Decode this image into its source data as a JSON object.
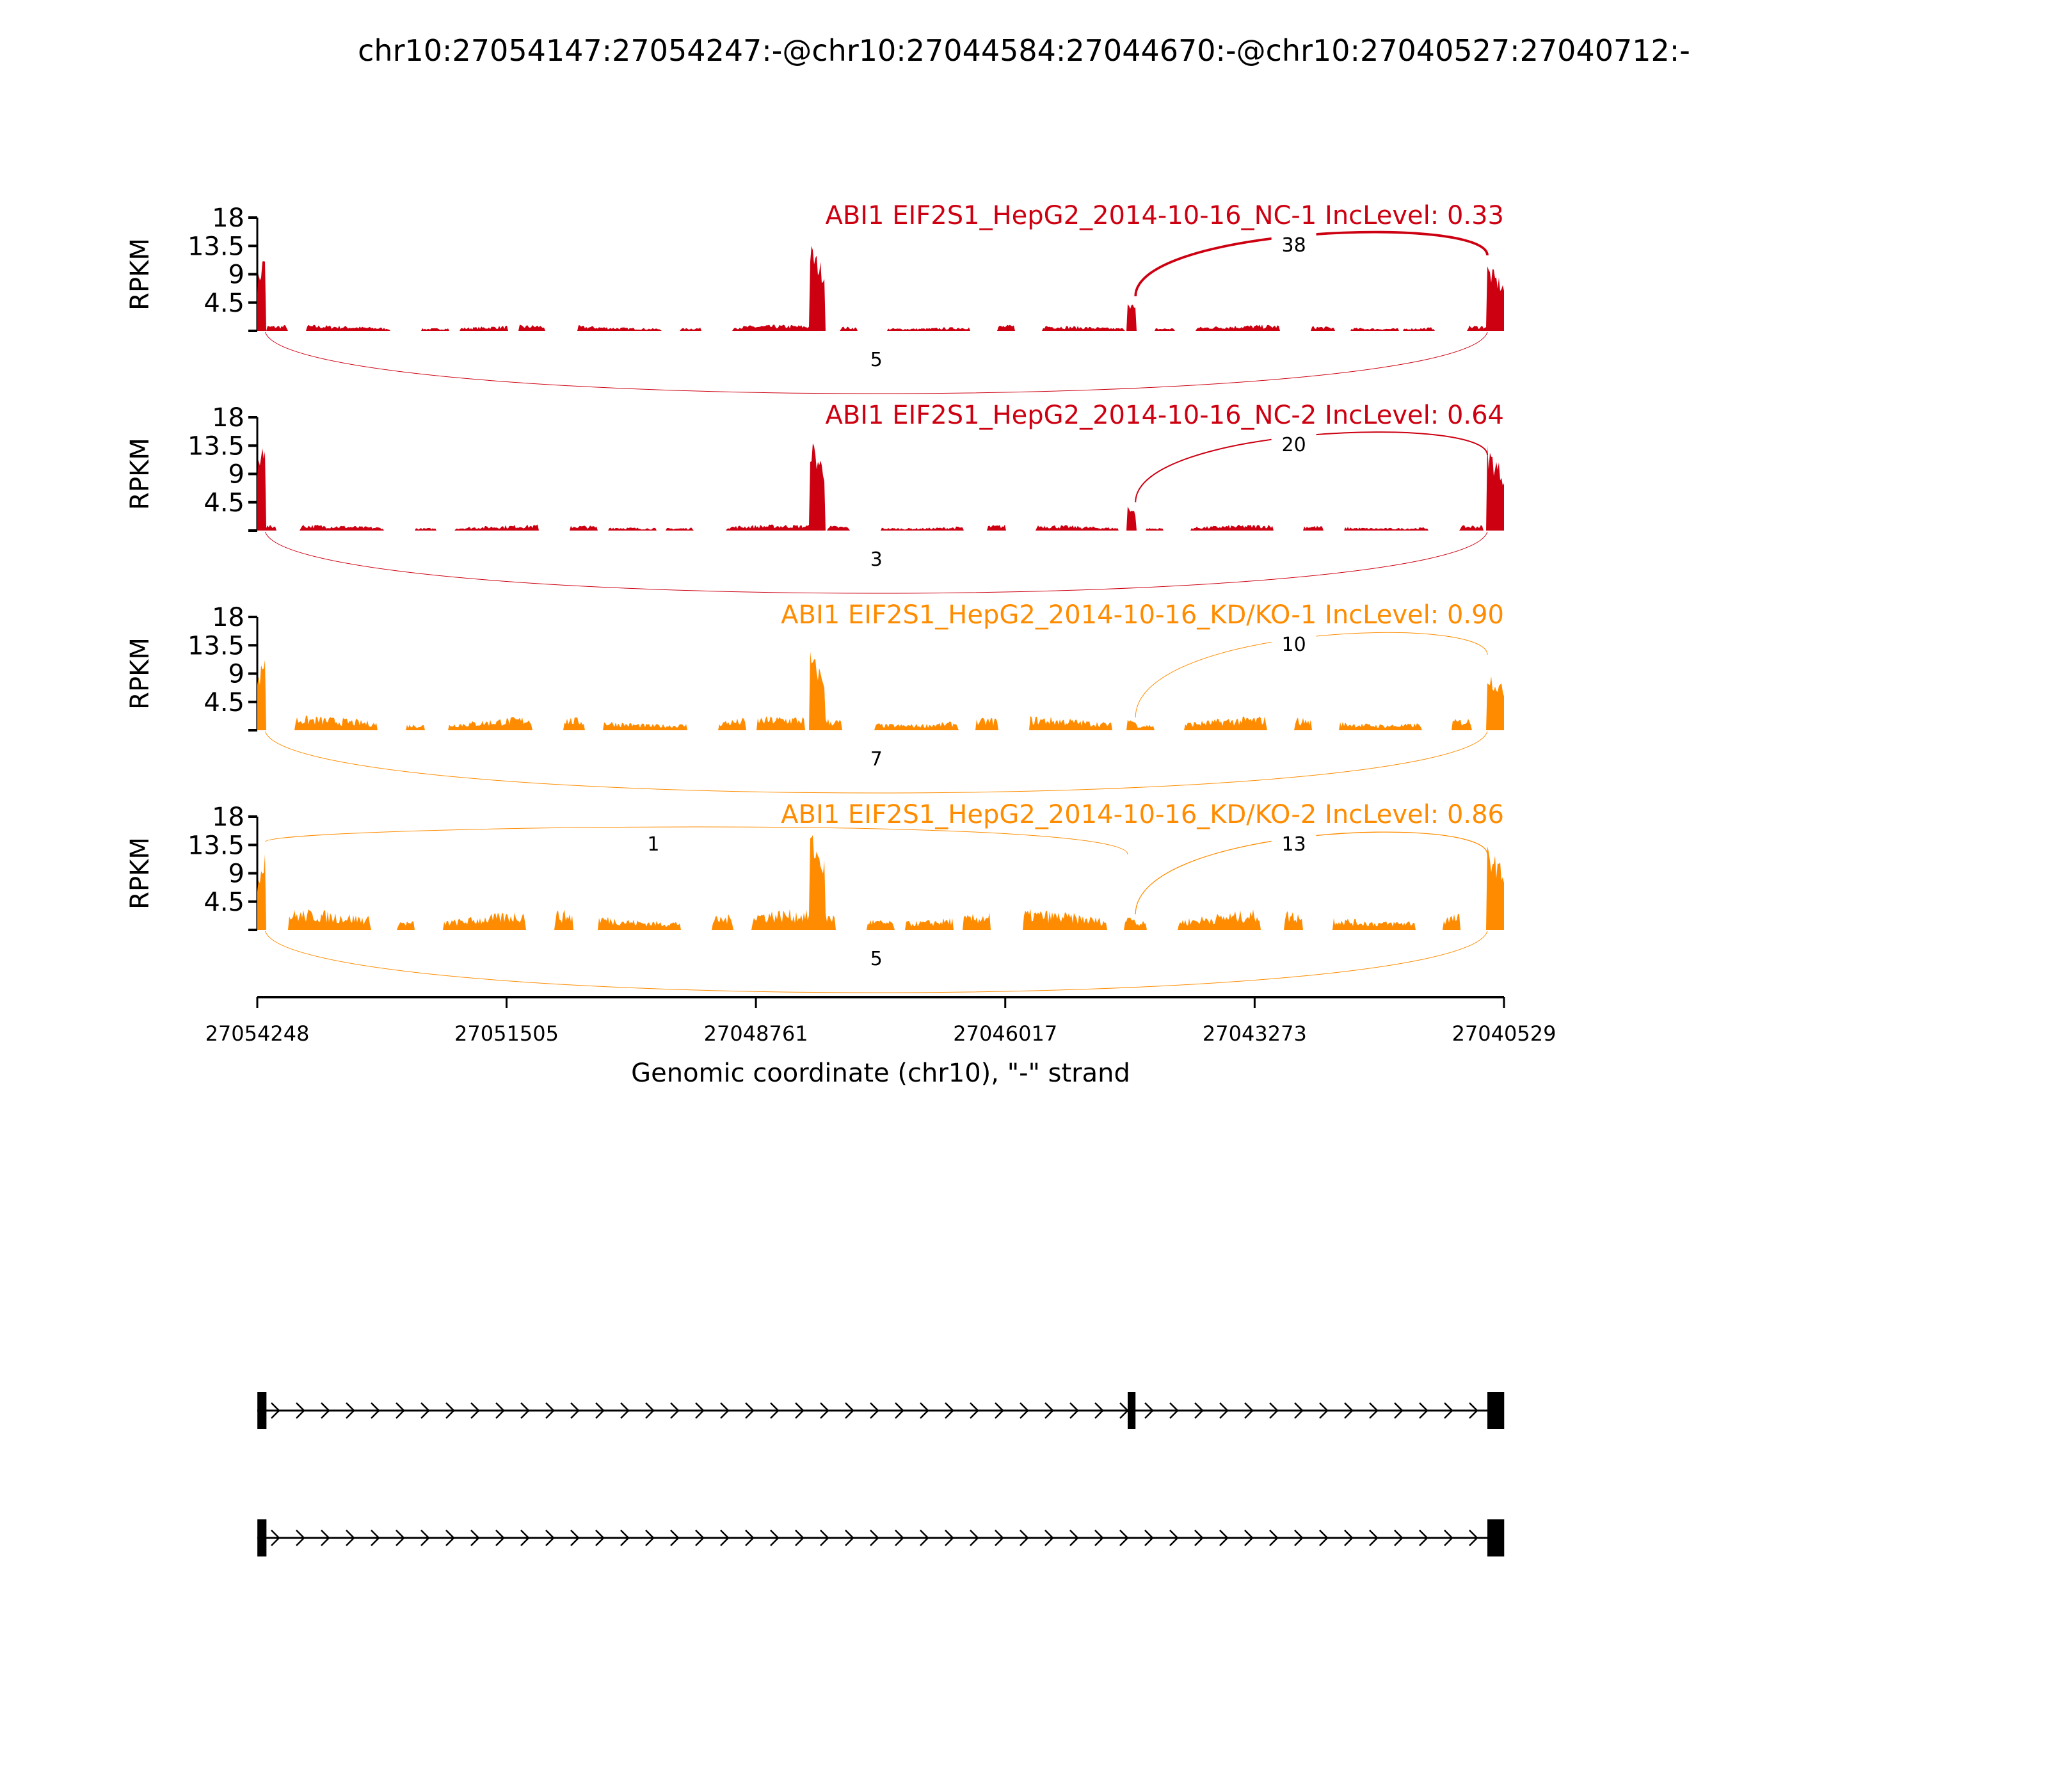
{
  "chart_data": {
    "type": "area",
    "title": "chr10:27054147:27054247:-@chr10:27044584:27044670:-@chr10:27040527:27040712:-",
    "xlabel": "Genomic coordinate (chr10), \"-\" strand",
    "ylabel": "RPKM",
    "xlim": [
      27054248,
      27040529
    ],
    "x_ticks": [
      "27054248",
      "27051505",
      "27048761",
      "27046017",
      "27043273",
      "27040529"
    ],
    "x_tick_values": [
      27054248,
      27051505,
      27048761,
      27046017,
      27043273,
      27040529
    ],
    "ylim": [
      0,
      18
    ],
    "y_ticks": [
      "4.5",
      "9",
      "13.5",
      "18"
    ],
    "y_tick_values": [
      4.5,
      9,
      13.5,
      18
    ],
    "colors": {
      "NC": "#cc0011",
      "KD": "#ff8c00"
    },
    "exons_in_coverage": [
      {
        "start": 27054160,
        "end": 27054248
      },
      {
        "start": 27048010,
        "end": 27048170
      },
      {
        "start": 27044584,
        "end": 27044670
      },
      {
        "start": 27040527,
        "end": 27040712
      }
    ],
    "series": [
      {
        "name": "ABI1 EIF2S1_HepG2_2014-10-16_NC-1 IncLevel: 0.33",
        "color": "#cc0011",
        "exon_peaks": [
          14,
          14.5,
          5.5,
          11
        ],
        "background": 0.6,
        "junctions": [
          {
            "from": 27044584,
            "to": 27040712,
            "count": "38",
            "side": "above"
          },
          {
            "from": 27054160,
            "to": 27040712,
            "count": "5",
            "side": "below"
          }
        ]
      },
      {
        "name": "ABI1 EIF2S1_HepG2_2014-10-16_NC-2 IncLevel: 0.64",
        "color": "#cc0011",
        "exon_peaks": [
          17,
          15.5,
          4.5,
          14
        ],
        "background": 0.6,
        "junctions": [
          {
            "from": 27044584,
            "to": 27040712,
            "count": "20",
            "side": "above"
          },
          {
            "from": 27054160,
            "to": 27040712,
            "count": "3",
            "side": "below"
          }
        ]
      },
      {
        "name": "ABI1 EIF2S1_HepG2_2014-10-16_KD/KO-1 IncLevel: 0.90",
        "color": "#ff8c00",
        "exon_peaks": [
          13.5,
          13,
          2,
          10
        ],
        "background": 1.4,
        "junctions": [
          {
            "from": 27044584,
            "to": 27040712,
            "count": "10",
            "side": "above"
          },
          {
            "from": 27054160,
            "to": 27040712,
            "count": "7",
            "side": "below"
          }
        ]
      },
      {
        "name": "ABI1 EIF2S1_HepG2_2014-10-16_KD/KO-2 IncLevel: 0.86",
        "color": "#ff8c00",
        "exon_peaks": [
          14,
          16.5,
          2.5,
          14
        ],
        "background": 2,
        "junctions": [
          {
            "from": 27054160,
            "to": 27044670,
            "count": "1",
            "side": "above"
          },
          {
            "from": 27044584,
            "to": 27040712,
            "count": "13",
            "side": "above"
          },
          {
            "from": 27054160,
            "to": 27040712,
            "count": "5",
            "side": "below"
          }
        ]
      }
    ],
    "isoforms": [
      {
        "exons": [
          [
            27054147,
            27054247
          ],
          [
            27044584,
            27044670
          ],
          [
            27040527,
            27040712
          ]
        ]
      },
      {
        "exons": [
          [
            27054147,
            27054247
          ],
          [
            27040527,
            27040712
          ]
        ]
      }
    ]
  }
}
